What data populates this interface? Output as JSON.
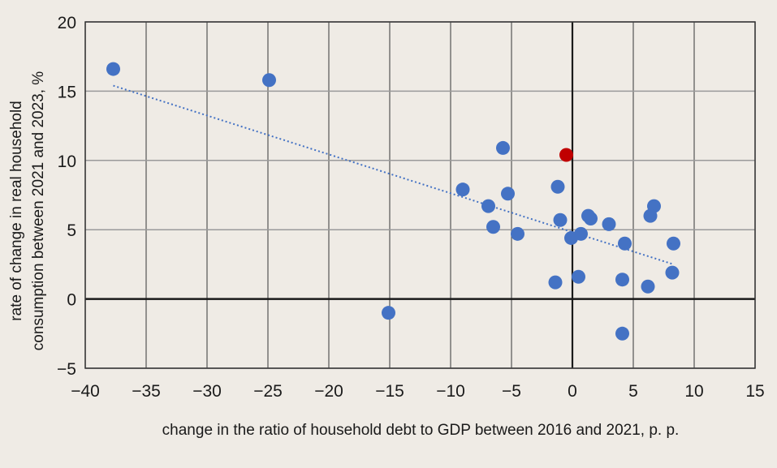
{
  "chart_data": {
    "type": "scatter",
    "title": "",
    "xlabel": "change in the ratio of household debt to GDP between 2016 and 2021, p. p.",
    "ylabel_lines": [
      "rate of change in real household",
      "consumption between 2021 and 2023, %"
    ],
    "xlim": [
      -40,
      15
    ],
    "ylim": [
      -5,
      20
    ],
    "x_ticks": [
      -40,
      -35,
      -30,
      -25,
      -20,
      -15,
      -10,
      -5,
      0,
      5,
      10,
      15
    ],
    "y_ticks": [
      -5,
      0,
      5,
      10,
      15,
      20
    ],
    "x_tick_labels": [
      "−40",
      "−35",
      "−30",
      "−25",
      "−20",
      "−15",
      "−10",
      "−5",
      "0",
      "5",
      "10",
      "15"
    ],
    "y_tick_labels": [
      "−5",
      "0",
      "5",
      "10",
      "15",
      "20"
    ],
    "grid": true,
    "colors": {
      "point": "#4472c4",
      "highlight": "#c00000",
      "trendline": "#4472c4",
      "axis_zero": "#1a1a1a",
      "grid_vertical": "#555555",
      "grid_horizontal": "#9a9a9a",
      "frame": "#333333"
    },
    "series": [
      {
        "name": "countries",
        "points": [
          {
            "x": -37.7,
            "y": 16.6
          },
          {
            "x": -24.9,
            "y": 15.8
          },
          {
            "x": -15.1,
            "y": -1.0
          },
          {
            "x": -9.0,
            "y": 7.9
          },
          {
            "x": -5.7,
            "y": 10.9
          },
          {
            "x": -6.9,
            "y": 6.7
          },
          {
            "x": -5.3,
            "y": 7.6
          },
          {
            "x": -6.5,
            "y": 5.2
          },
          {
            "x": -4.5,
            "y": 4.7
          },
          {
            "x": -1.2,
            "y": 8.1
          },
          {
            "x": -1.0,
            "y": 5.7
          },
          {
            "x": -1.4,
            "y": 1.2
          },
          {
            "x": -0.1,
            "y": 4.4
          },
          {
            "x": 0.7,
            "y": 4.7
          },
          {
            "x": 0.5,
            "y": 1.6
          },
          {
            "x": 1.3,
            "y": 6.0
          },
          {
            "x": 1.5,
            "y": 5.8
          },
          {
            "x": 3.0,
            "y": 5.4
          },
          {
            "x": 4.3,
            "y": 4.0
          },
          {
            "x": 4.1,
            "y": 1.4
          },
          {
            "x": 4.1,
            "y": -2.5
          },
          {
            "x": 6.2,
            "y": 0.9
          },
          {
            "x": 6.7,
            "y": 6.7
          },
          {
            "x": 6.4,
            "y": 6.0
          },
          {
            "x": 8.3,
            "y": 4.0
          },
          {
            "x": 8.2,
            "y": 1.9
          }
        ]
      },
      {
        "name": "highlighted",
        "points": [
          {
            "x": -0.5,
            "y": 10.4
          }
        ]
      }
    ],
    "trendline": {
      "type": "linear",
      "style": "dotted",
      "from": {
        "x": -37.7,
        "y": 15.4
      },
      "to": {
        "x": 8.3,
        "y": 2.5
      }
    }
  }
}
